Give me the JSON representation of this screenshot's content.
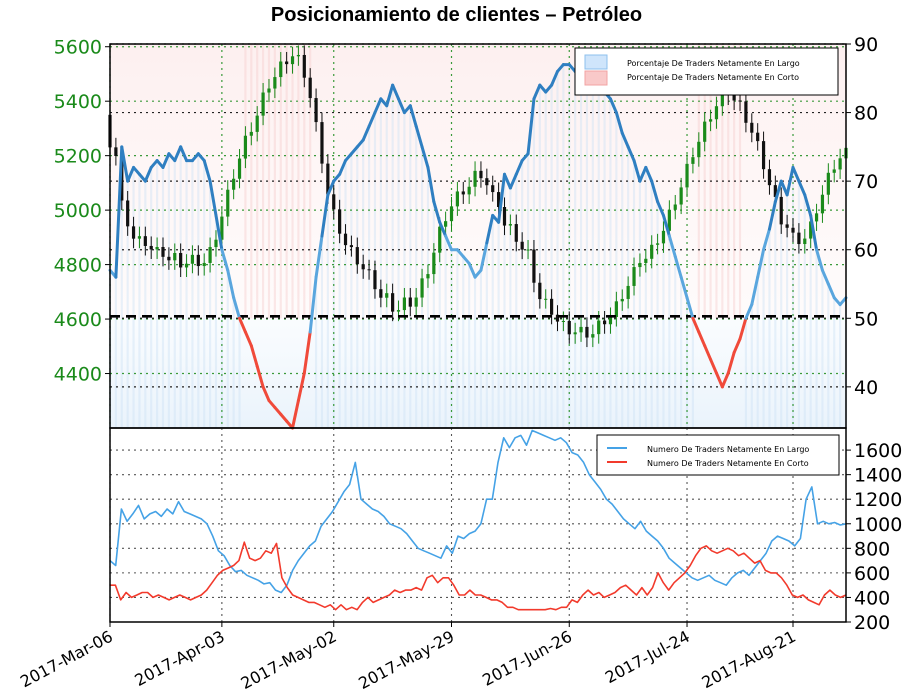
{
  "title": "Posicionamiento de clientes – Petróleo",
  "chart_data": [
    {
      "type": "line",
      "panel": "top",
      "title": "Posicionamiento de clientes – Petróleo",
      "candles_note": "price candlesticks on left axis",
      "left_axis": {
        "ticks": [
          4400,
          4600,
          4800,
          5000,
          5200,
          5400,
          5600
        ],
        "ylim": [
          4200,
          5610
        ],
        "color": "#1a8a1a"
      },
      "right_axis": {
        "ticks": [
          40,
          50,
          60,
          70,
          80,
          90
        ],
        "ylim": [
          34,
          90
        ]
      },
      "reference_level": 4610,
      "legend": [
        "Porcentaje De Traders Netamente En Largo",
        "Porcentaje De Traders Netamente En Corto"
      ],
      "legend_placement": "top-right",
      "colors": {
        "long": "#2f7fc1",
        "short": "#f04a3a",
        "price_up": "#1a8a1a",
        "price_down": "#111111"
      },
      "series": [
        {
          "name": "Porcentaje De Traders Netamente En Largo",
          "x": [
            0,
            1,
            2,
            3,
            4,
            5,
            6,
            7,
            8,
            9,
            10,
            11,
            12,
            13,
            14,
            15,
            16,
            17,
            18,
            19,
            20,
            21,
            22,
            23,
            24,
            25,
            26,
            27,
            28,
            29,
            30,
            31,
            32,
            33,
            34,
            35,
            36,
            37,
            38,
            39,
            40,
            41,
            42,
            43,
            44,
            45,
            46,
            47,
            48,
            49,
            50,
            51,
            52,
            53,
            54,
            55,
            56,
            57,
            58,
            59,
            60,
            61,
            62,
            63,
            64,
            65,
            66,
            67,
            68,
            69,
            70,
            71,
            72,
            73,
            74,
            75,
            76,
            77,
            78,
            79,
            80,
            81,
            82,
            83,
            84,
            85,
            86,
            87,
            88,
            89,
            90,
            91,
            92,
            93,
            94,
            95,
            96,
            97,
            98,
            99,
            100,
            101,
            102,
            103,
            104,
            105,
            106,
            107,
            108,
            109,
            110,
            111,
            112,
            113,
            114,
            115,
            116,
            117,
            118,
            119,
            120,
            121,
            122,
            123,
            124,
            125
          ],
          "values": [
            57,
            56,
            75,
            70,
            72,
            71,
            70,
            72,
            73,
            72,
            74,
            73,
            75,
            73,
            73,
            74,
            73,
            70,
            65,
            60,
            57,
            53,
            50,
            48,
            46,
            43,
            40,
            38,
            37,
            36,
            35,
            34,
            38,
            42,
            48,
            56,
            62,
            68,
            70,
            71,
            73,
            74,
            75,
            76,
            78,
            80,
            82,
            81,
            84,
            82,
            80,
            81,
            78,
            75,
            72,
            67,
            64,
            62,
            60,
            60,
            59,
            58,
            56,
            57,
            61,
            65,
            64,
            71,
            69,
            71,
            73,
            74,
            82,
            84,
            83,
            84,
            86,
            87,
            87,
            86,
            87,
            87,
            86,
            84,
            83,
            82,
            80,
            77,
            75,
            73,
            70,
            72,
            70,
            67,
            65,
            62,
            59,
            56,
            53,
            50,
            48,
            46,
            44,
            42,
            40,
            42,
            45,
            47,
            50,
            52,
            56,
            60,
            63,
            67,
            70,
            68,
            72,
            70,
            68,
            65,
            60,
            57,
            55,
            53,
            52,
            53
          ]
        }
      ]
    },
    {
      "type": "line",
      "panel": "bottom",
      "y_ticks": [
        200,
        400,
        600,
        800,
        1000,
        1200,
        1400,
        1600
      ],
      "ylim": [
        200,
        1780
      ],
      "x_tick_labels": [
        "2017-Mar-06",
        "2017-Apr-03",
        "2017-May-02",
        "2017-May-29",
        "2017-Jun-26",
        "2017-Jul-24",
        "2017-Aug-21"
      ],
      "legend": [
        "Numero De Traders Netamente En Largo",
        "Numero De Traders Netamente En Corto"
      ],
      "legend_placement": "top-right",
      "series": [
        {
          "name": "Numero De Traders Netamente En Largo",
          "color": "#45a2e6",
          "values": [
            700,
            660,
            1120,
            1020,
            1080,
            1150,
            1040,
            1080,
            1100,
            1060,
            1120,
            1080,
            1180,
            1100,
            1080,
            1060,
            1040,
            1000,
            900,
            780,
            740,
            660,
            610,
            620,
            580,
            560,
            540,
            510,
            520,
            460,
            440,
            500,
            620,
            700,
            760,
            820,
            860,
            980,
            1040,
            1100,
            1180,
            1260,
            1320,
            1500,
            1200,
            1160,
            1120,
            1100,
            1060,
            1000,
            980,
            960,
            920,
            860,
            800,
            780,
            760,
            740,
            720,
            820,
            760,
            900,
            880,
            920,
            940,
            1000,
            1200,
            1200,
            1500,
            1700,
            1620,
            1700,
            1720,
            1640,
            1760,
            1740,
            1720,
            1700,
            1680,
            1700,
            1660,
            1580,
            1560,
            1500,
            1400,
            1340,
            1280,
            1200,
            1160,
            1100,
            1040,
            1000,
            960,
            1020,
            940,
            900,
            860,
            800,
            720,
            680,
            640,
            600,
            560,
            540,
            560,
            580,
            540,
            520,
            500,
            560,
            600,
            620,
            580,
            640,
            700,
            760,
            860,
            900,
            880,
            860,
            820,
            880,
            1200,
            1300,
            1000,
            1020,
            1000,
            1010,
            990,
            1000
          ],
          "note": "long count series; values read off right axis"
        },
        {
          "name": "Numero De Traders Netamente En Corto",
          "color": "#f23a2c",
          "values": [
            500,
            500,
            380,
            440,
            400,
            420,
            440,
            440,
            400,
            420,
            400,
            380,
            400,
            420,
            400,
            380,
            400,
            420,
            460,
            520,
            580,
            620,
            640,
            660,
            700,
            850,
            720,
            700,
            720,
            780,
            760,
            840,
            560,
            480,
            420,
            400,
            380,
            360,
            360,
            340,
            320,
            340,
            300,
            340,
            300,
            320,
            300,
            360,
            400,
            360,
            380,
            400,
            420,
            460,
            440,
            460,
            460,
            480,
            460,
            560,
            580,
            520,
            560,
            560,
            500,
            420,
            420,
            460,
            420,
            420,
            400,
            380,
            380,
            360,
            320,
            320,
            300,
            300,
            300,
            300,
            300,
            300,
            310,
            300,
            320,
            320,
            380,
            360,
            420,
            460,
            420,
            440,
            400,
            420,
            440,
            480,
            500,
            460,
            420,
            480,
            420,
            480,
            600,
            520,
            460,
            520,
            560,
            600,
            660,
            740,
            800,
            820,
            780,
            760,
            780,
            800,
            780,
            740,
            760,
            720,
            680,
            700,
            620,
            600,
            600,
            560,
            500,
            420,
            400,
            420,
            380,
            360,
            340,
            420,
            460,
            420,
            400,
            420
          ]
        }
      ]
    }
  ]
}
